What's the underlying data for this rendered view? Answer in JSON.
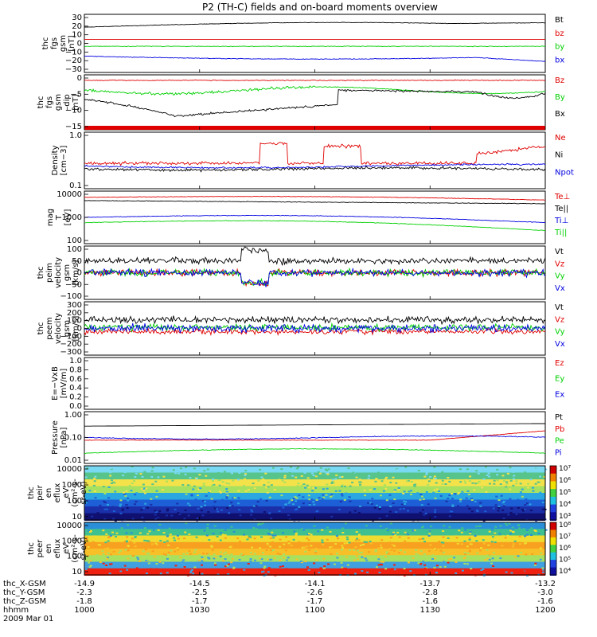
{
  "title": "P2 (TH-C) fields and on-board moments overview",
  "colors": {
    "black": "#000000",
    "red": "#e00000",
    "green": "#00d000",
    "blue": "#0000e0"
  },
  "chart_data": {
    "type": "line",
    "x_ticks": [
      "1000",
      "1030",
      "1100",
      "1130",
      "1200"
    ],
    "time_range": [
      "10:00",
      "12:00"
    ],
    "ephemeris": {
      "labels": [
        "thc_X-GSM",
        "thc_Y-GSM",
        "thc_Z-GSM",
        "hhmm",
        "2009 Mar 01"
      ],
      "rows": [
        [
          "-14.9",
          "-14.5",
          "-14.1",
          "-13.7",
          "-13.2"
        ],
        [
          "-2.3",
          "-2.5",
          "-2.6",
          "-2.8",
          "-3.0"
        ],
        [
          "-1.8",
          "-1.7",
          "-1.7",
          "-1.6",
          "-1.6"
        ],
        [
          "1000",
          "1030",
          "1100",
          "1130",
          "1200"
        ]
      ]
    },
    "panels": [
      {
        "id": "fgs",
        "ylabel": [
          "thc",
          "fgs",
          "gsm",
          "[nT]"
        ],
        "ylim": [
          -35,
          35
        ],
        "yticks": [
          "30",
          "20",
          "10",
          "0",
          "−10",
          "−20",
          "−30"
        ],
        "series": [
          {
            "name": "Bt",
            "color": "#000000",
            "shape": "bt_fgs"
          },
          {
            "name": "bz",
            "color": "#e00000",
            "shape": "flat5"
          },
          {
            "name": "by",
            "color": "#00d000",
            "shape": "flat_m2"
          },
          {
            "name": "bx",
            "color": "#0000e0",
            "shape": "bx_fgs"
          }
        ]
      },
      {
        "id": "fgs_dsl",
        "ylabel": [
          "thc",
          "fgs",
          "gsm",
          "–dip",
          "[nT]"
        ],
        "ylim": [
          -17,
          3
        ],
        "yticks": [
          "0",
          "−5",
          "−10",
          "−15"
        ],
        "legend_extra": "Bz",
        "series": [
          {
            "name": "Bz",
            "color": "#e00000",
            "shape": "bz_dip"
          },
          {
            "name": "By",
            "color": "#00d000",
            "shape": "by_dip"
          },
          {
            "name": "Bx",
            "color": "#000000",
            "shape": "bx_dip"
          }
        ]
      },
      {
        "id": "density",
        "ylabel": [
          "Density",
          "[cm−3]"
        ],
        "log": true,
        "ylim": [
          0.1,
          1.2
        ],
        "yticks": [
          "1.0",
          "0.1"
        ],
        "series": [
          {
            "name": "Ne",
            "color": "#e00000",
            "shape": "ne"
          },
          {
            "name": "Ni",
            "color": "#000000",
            "shape": "ni"
          },
          {
            "name": "Npot",
            "color": "#0000e0",
            "shape": "npot"
          }
        ]
      },
      {
        "id": "temp",
        "ylabel": [
          "mag",
          "T",
          "[eV]"
        ],
        "log": true,
        "ylim": [
          100,
          15000
        ],
        "yticks": [
          "10000",
          "1000",
          "100"
        ],
        "series": [
          {
            "name": "Te⊥",
            "color": "#e00000",
            "shape": "te_perp"
          },
          {
            "name": "Te||",
            "color": "#000000",
            "shape": "te_par"
          },
          {
            "name": "Ti⊥",
            "color": "#0000e0",
            "shape": "ti_perp"
          },
          {
            "name": "Ti||",
            "color": "#00d000",
            "shape": "ti_par"
          }
        ]
      },
      {
        "id": "peim",
        "ylabel": [
          "thc",
          "peim",
          "velocity",
          "gsm",
          "[km/s]"
        ],
        "ylim": [
          -100,
          100
        ],
        "yticks": [
          "100",
          "50",
          "0",
          "−50",
          "−100"
        ],
        "series": [
          {
            "name": "Vt",
            "color": "#000000",
            "shape": "vt_peim"
          },
          {
            "name": "Vz",
            "color": "#e00000",
            "shape": "noise0"
          },
          {
            "name": "Vy",
            "color": "#00d000",
            "shape": "noise0"
          },
          {
            "name": "Vx",
            "color": "#0000e0",
            "shape": "noise0"
          }
        ]
      },
      {
        "id": "peem",
        "ylabel": [
          "thc",
          "peem",
          "velocity",
          "gsm",
          "[km/s]"
        ],
        "ylim": [
          -300,
          300
        ],
        "yticks": [
          "300",
          "200",
          "100",
          "0",
          "−100",
          "−200",
          "−300"
        ],
        "series": [
          {
            "name": "Vt",
            "color": "#000000",
            "shape": "vt_peem"
          },
          {
            "name": "Vz",
            "color": "#e00000",
            "shape": "noise_m50"
          },
          {
            "name": "Vy",
            "color": "#00d000",
            "shape": "noise0b"
          },
          {
            "name": "Vx",
            "color": "#0000e0",
            "shape": "noise0c"
          }
        ]
      },
      {
        "id": "efield",
        "ylabel": [
          "E=−VxB",
          "[mV/m]"
        ],
        "ylim": [
          0,
          1
        ],
        "yticks": [
          "1.0",
          "0.8",
          "0.6",
          "0.4",
          "0.2",
          "0.0"
        ],
        "series": [
          {
            "name": "Ez",
            "color": "#e00000",
            "shape": "none"
          },
          {
            "name": "Ey",
            "color": "#00d000",
            "shape": "none"
          },
          {
            "name": "Ex",
            "color": "#0000e0",
            "shape": "none"
          }
        ]
      },
      {
        "id": "pressure",
        "ylabel": [
          "Pressure",
          "[nPa]"
        ],
        "log": true,
        "ylim": [
          0.01,
          1.2
        ],
        "yticks": [
          "1.00",
          "0.10",
          "0.01"
        ],
        "series": [
          {
            "name": "Pt",
            "color": "#000000",
            "shape": "pt"
          },
          {
            "name": "Pb",
            "color": "#e00000",
            "shape": "pb"
          },
          {
            "name": "Pe",
            "color": "#00d000",
            "shape": "pe"
          },
          {
            "name": "Pi",
            "color": "#0000e0",
            "shape": "pi"
          }
        ]
      },
      {
        "id": "peir",
        "spectrogram": true,
        "ylabel": [
          "thc",
          "peir",
          "en",
          "eflux",
          "eV",
          "(cm²-s-",
          "sr-eV)"
        ],
        "yticks": [
          "10000",
          "1000",
          "100",
          "10"
        ],
        "colorbar": [
          "10⁷",
          "10⁶",
          "10⁵",
          "10⁴",
          "10³"
        ]
      },
      {
        "id": "peer",
        "spectrogram": true,
        "ylabel": [
          "thc",
          "peer",
          "en",
          "eflux",
          "eV",
          "(cm²-s-",
          "sr-eV)"
        ],
        "yticks": [
          "10000",
          "1000",
          "100",
          "10"
        ],
        "colorbar": [
          "10⁸",
          "10⁷",
          "10⁶",
          "10⁵",
          "10⁴"
        ]
      }
    ]
  }
}
